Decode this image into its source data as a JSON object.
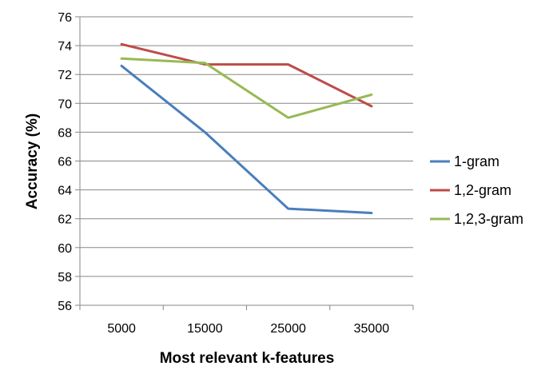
{
  "chart_data": {
    "type": "line",
    "x": [
      "5000",
      "15000",
      "25000",
      "35000"
    ],
    "xlabel": "Most relevant k-features",
    "ylabel": "Accuracy (%)",
    "ylim": [
      56,
      76
    ],
    "ytick_step": 2,
    "yticks": [
      "56",
      "58",
      "60",
      "62",
      "64",
      "66",
      "68",
      "70",
      "72",
      "74",
      "76"
    ],
    "grid": "horizontal",
    "legend_position": "right",
    "series": [
      {
        "name": "1-gram",
        "color": "#4a7ebb",
        "values": [
          72.6,
          68.0,
          62.7,
          62.4
        ]
      },
      {
        "name": "1,2-gram",
        "color": "#be4b48",
        "values": [
          74.1,
          72.7,
          72.7,
          69.8
        ]
      },
      {
        "name": "1,2,3-gram",
        "color": "#98b954",
        "values": [
          73.1,
          72.8,
          69.0,
          70.6
        ]
      }
    ]
  }
}
